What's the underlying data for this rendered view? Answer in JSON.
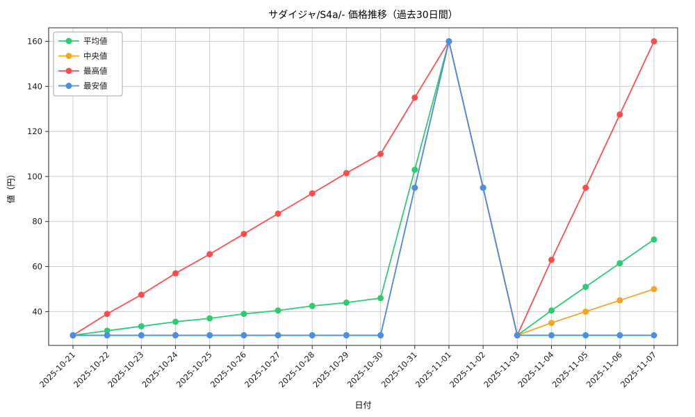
{
  "chart": {
    "title": "サダイジャ/S4a/- 価格推移（過去30日間）"
  },
  "chart_data": {
    "type": "line",
    "title": "サダイジャ/S4a/- 価格推移（過去30日間）",
    "xlabel": "日付",
    "ylabel": "値（円）",
    "categories": [
      "2025-10-21",
      "2025-10-22",
      "2025-10-23",
      "2025-10-24",
      "2025-10-25",
      "2025-10-26",
      "2025-10-27",
      "2025-10-28",
      "2025-10-29",
      "2025-10-30",
      "2025-10-31",
      "2025-11-01",
      "2025-11-02",
      "2025-11-03",
      "2025-11-04",
      "2025-11-05",
      "2025-11-06",
      "2025-11-07"
    ],
    "series": [
      {
        "name": "平均値",
        "key": "avg",
        "color": "#2ecc71",
        "values": [
          29.5,
          31.5,
          33.5,
          35.5,
          37,
          39,
          40.5,
          42.5,
          44,
          46,
          103,
          160,
          95,
          29.5,
          40.5,
          51,
          61.5,
          72
        ]
      },
      {
        "name": "中央値",
        "key": "median",
        "color": "#f5a623",
        "values": [
          29.5,
          29.5,
          29.5,
          29.5,
          29.5,
          29.5,
          29.5,
          29.5,
          29.5,
          29.5,
          95,
          160,
          95,
          29.5,
          35,
          40,
          45,
          50
        ]
      },
      {
        "name": "最高値",
        "key": "max",
        "color": "#ff4d4d",
        "values": [
          29.5,
          39,
          47.5,
          57,
          65.5,
          74.5,
          83.5,
          92.5,
          101.5,
          110,
          135,
          160,
          95,
          29.5,
          63,
          95,
          127.5,
          160
        ]
      },
      {
        "name": "最安値",
        "key": "min",
        "color": "#4a90e2",
        "values": [
          29.5,
          29.5,
          29.5,
          29.5,
          29.5,
          29.5,
          29.5,
          29.5,
          29.5,
          29.5,
          95,
          160,
          95,
          29.5,
          29.5,
          29.5,
          29.5,
          29.5
        ]
      }
    ],
    "ylim": [
      25,
      166
    ],
    "yticks": [
      40,
      60,
      80,
      100,
      120,
      140,
      160
    ],
    "grid": true,
    "legend_position": "upper left",
    "colors": {
      "grid": "#cccccc",
      "spine": "#262626",
      "tick_label": "#1a1a1a",
      "legend_border": "#a6a6a6",
      "background": "#ffffff"
    }
  }
}
